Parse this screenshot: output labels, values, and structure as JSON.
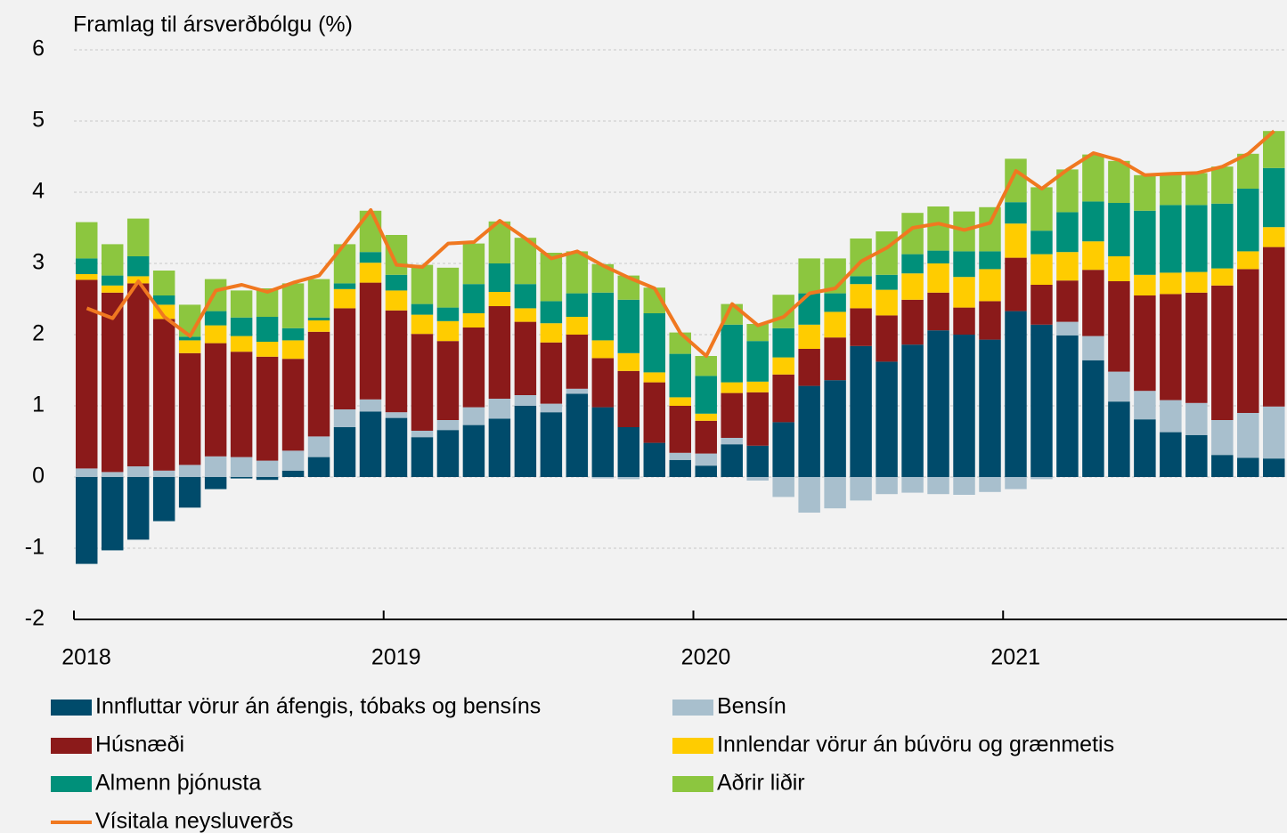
{
  "chart_data": {
    "type": "stacked-bar",
    "title": "Framlag til ársverðbólgu (%)",
    "categories": [
      "2018",
      null,
      null,
      null,
      null,
      null,
      null,
      null,
      null,
      null,
      null,
      null,
      "2019",
      null,
      null,
      null,
      null,
      null,
      null,
      null,
      null,
      null,
      null,
      null,
      "2020",
      null,
      null,
      null,
      null,
      null,
      null,
      null,
      null,
      null,
      null,
      null,
      "2021",
      null,
      null,
      null,
      null,
      null,
      null,
      null,
      null,
      null,
      null
    ],
    "ylim": [
      -2,
      6
    ],
    "yticks": [
      -2,
      -1,
      0,
      1,
      2,
      3,
      4,
      5,
      6
    ],
    "grid": true,
    "series": [
      {
        "name": "Innfluttar vörur án áfengis, tóbaks og bensíns",
        "color": "#004b6b",
        "values": [
          -1.22,
          -1.03,
          -0.88,
          -0.62,
          -0.43,
          -0.17,
          -0.02,
          -0.04,
          0.09,
          0.28,
          0.7,
          0.92,
          0.83,
          0.56,
          0.66,
          0.73,
          0.82,
          1.0,
          0.91,
          1.17,
          0.98,
          0.7,
          0.48,
          0.24,
          0.16,
          0.46,
          0.44,
          0.77,
          1.28,
          1.36,
          1.84,
          1.62,
          1.86,
          2.06,
          2.0,
          1.93,
          2.33,
          2.14,
          1.99,
          1.64,
          1.06,
          0.81,
          0.63,
          0.59,
          0.31,
          0.27,
          0.26
        ]
      },
      {
        "name": "Bensín",
        "color": "#a8bfcd",
        "values": [
          0.12,
          0.07,
          0.15,
          0.09,
          0.17,
          0.29,
          0.28,
          0.23,
          0.28,
          0.29,
          0.25,
          0.17,
          0.08,
          0.09,
          0.14,
          0.25,
          0.28,
          0.15,
          0.12,
          0.07,
          -0.02,
          -0.03,
          0.0,
          0.1,
          0.17,
          0.09,
          -0.05,
          -0.28,
          -0.5,
          -0.44,
          -0.33,
          -0.24,
          -0.22,
          -0.24,
          -0.25,
          -0.21,
          -0.17,
          -0.03,
          0.19,
          0.34,
          0.42,
          0.4,
          0.45,
          0.45,
          0.49,
          0.63,
          0.73
        ]
      },
      {
        "name": "Húsnæði",
        "color": "#8b1a1a",
        "values": [
          2.65,
          2.52,
          2.57,
          2.13,
          1.57,
          1.59,
          1.48,
          1.46,
          1.29,
          1.47,
          1.42,
          1.64,
          1.43,
          1.36,
          1.11,
          1.12,
          1.3,
          1.03,
          0.86,
          0.76,
          0.69,
          0.79,
          0.85,
          0.66,
          0.46,
          0.63,
          0.75,
          0.67,
          0.52,
          0.6,
          0.53,
          0.65,
          0.63,
          0.53,
          0.38,
          0.54,
          0.75,
          0.56,
          0.58,
          0.93,
          1.27,
          1.34,
          1.49,
          1.55,
          1.89,
          2.02,
          2.24
        ]
      },
      {
        "name": "Innlendar vörur án búvöru og grænmetis",
        "color": "#ffcc00",
        "values": [
          0.08,
          0.1,
          0.1,
          0.2,
          0.18,
          0.25,
          0.22,
          0.21,
          0.26,
          0.16,
          0.27,
          0.28,
          0.28,
          0.27,
          0.28,
          0.2,
          0.2,
          0.19,
          0.27,
          0.25,
          0.25,
          0.25,
          0.14,
          0.12,
          0.1,
          0.15,
          0.15,
          0.24,
          0.34,
          0.36,
          0.34,
          0.36,
          0.37,
          0.41,
          0.43,
          0.45,
          0.48,
          0.43,
          0.4,
          0.4,
          0.35,
          0.29,
          0.3,
          0.29,
          0.24,
          0.25,
          0.28
        ]
      },
      {
        "name": "Almenn þjónusta",
        "color": "#00907a",
        "values": [
          0.22,
          0.14,
          0.28,
          0.13,
          0.05,
          0.2,
          0.26,
          0.35,
          0.17,
          0.04,
          0.08,
          0.15,
          0.22,
          0.15,
          0.19,
          0.41,
          0.4,
          0.34,
          0.31,
          0.33,
          0.67,
          0.75,
          0.83,
          0.61,
          0.53,
          0.81,
          0.57,
          0.41,
          0.44,
          0.26,
          0.11,
          0.21,
          0.27,
          0.18,
          0.36,
          0.25,
          0.3,
          0.33,
          0.56,
          0.56,
          0.75,
          0.9,
          0.95,
          0.94,
          0.91,
          0.88,
          0.83
        ]
      },
      {
        "name": "Aðrir liðir",
        "color": "#8cc63f",
        "values": [
          0.51,
          0.44,
          0.53,
          0.35,
          0.45,
          0.45,
          0.38,
          0.4,
          0.63,
          0.54,
          0.55,
          0.58,
          0.56,
          0.55,
          0.56,
          0.57,
          0.59,
          0.65,
          0.68,
          0.59,
          0.4,
          0.34,
          0.36,
          0.3,
          0.28,
          0.29,
          0.24,
          0.47,
          0.49,
          0.49,
          0.53,
          0.61,
          0.58,
          0.62,
          0.56,
          0.62,
          0.61,
          0.61,
          0.6,
          0.66,
          0.59,
          0.5,
          0.44,
          0.45,
          0.52,
          0.49,
          0.52
        ]
      },
      {
        "name": "Vísitala neysluverðs",
        "type": "line",
        "color": "#f07820",
        "values": [
          2.37,
          2.23,
          2.75,
          2.25,
          1.98,
          2.62,
          2.7,
          2.6,
          2.73,
          2.83,
          3.28,
          3.75,
          2.98,
          2.95,
          3.28,
          3.3,
          3.6,
          3.35,
          3.07,
          3.17,
          2.97,
          2.8,
          2.65,
          2.02,
          1.7,
          2.43,
          2.13,
          2.25,
          2.58,
          2.65,
          3.03,
          3.22,
          3.5,
          3.56,
          3.47,
          3.57,
          4.3,
          4.05,
          4.32,
          4.55,
          4.45,
          4.24,
          4.26,
          4.27,
          4.36,
          4.54,
          4.86
        ]
      }
    ]
  }
}
